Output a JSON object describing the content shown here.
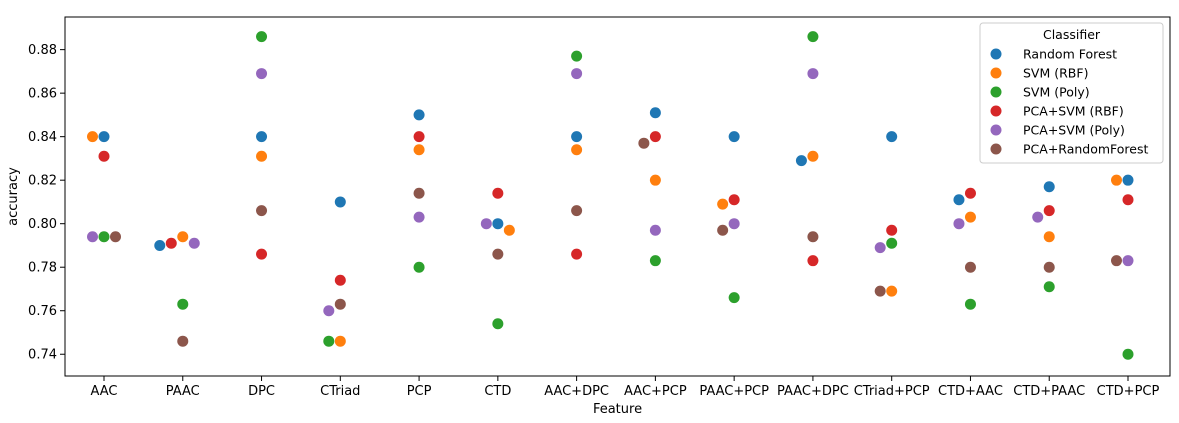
{
  "chart_data": {
    "type": "scatter",
    "xlabel": "Feature",
    "ylabel": "accuracy",
    "ylim": [
      0.73,
      0.895
    ],
    "yticks": [
      0.74,
      0.76,
      0.78,
      0.8,
      0.82,
      0.84,
      0.86,
      0.88
    ],
    "ytick_labels": [
      "0.74",
      "0.76",
      "0.78",
      "0.80",
      "0.82",
      "0.84",
      "0.86",
      "0.88"
    ],
    "grid": false,
    "legend_title": "Classifier",
    "legend_position": "top-right",
    "categories": [
      "AAC",
      "PAAC",
      "DPC",
      "CTriad",
      "PCP",
      "CTD",
      "AAC+DPC",
      "AAC+PCP",
      "PAAC+PCP",
      "PAAC+DPC",
      "CTriad+PCP",
      "CTD+AAC",
      "CTD+PAAC",
      "CTD+PCP"
    ],
    "series": [
      {
        "name": "Random Forest",
        "color": "#1f77b4",
        "values": [
          0.84,
          0.79,
          0.84,
          0.81,
          0.85,
          0.8,
          0.84,
          0.851,
          0.84,
          0.829,
          0.84,
          0.811,
          0.817,
          0.82
        ]
      },
      {
        "name": "SVM (RBF)",
        "color": "#ff7f0e",
        "values": [
          0.84,
          0.794,
          0.831,
          0.746,
          0.834,
          0.797,
          0.834,
          0.82,
          0.809,
          0.831,
          0.769,
          0.803,
          0.794,
          0.82
        ]
      },
      {
        "name": "SVM (Poly)",
        "color": "#2ca02c",
        "values": [
          0.794,
          0.763,
          0.886,
          0.746,
          0.78,
          0.754,
          0.877,
          0.783,
          0.766,
          0.886,
          0.791,
          0.763,
          0.771,
          0.74
        ]
      },
      {
        "name": "PCA+SVM (RBF)",
        "color": "#d62728",
        "values": [
          0.831,
          0.791,
          0.786,
          0.774,
          0.84,
          0.814,
          0.786,
          0.84,
          0.811,
          0.783,
          0.797,
          0.814,
          0.806,
          0.811
        ]
      },
      {
        "name": "PCA+SVM (Poly)",
        "color": "#9467bd",
        "values": [
          0.794,
          0.791,
          0.869,
          0.76,
          0.803,
          0.8,
          0.869,
          0.797,
          0.8,
          0.869,
          0.789,
          0.8,
          0.803,
          0.783
        ]
      },
      {
        "name": "PCA+RandomForest",
        "color": "#8c564b",
        "values": [
          0.794,
          0.746,
          0.806,
          0.763,
          0.814,
          0.786,
          0.806,
          0.837,
          0.797,
          0.794,
          0.769,
          0.78,
          0.78,
          0.783
        ]
      }
    ]
  }
}
